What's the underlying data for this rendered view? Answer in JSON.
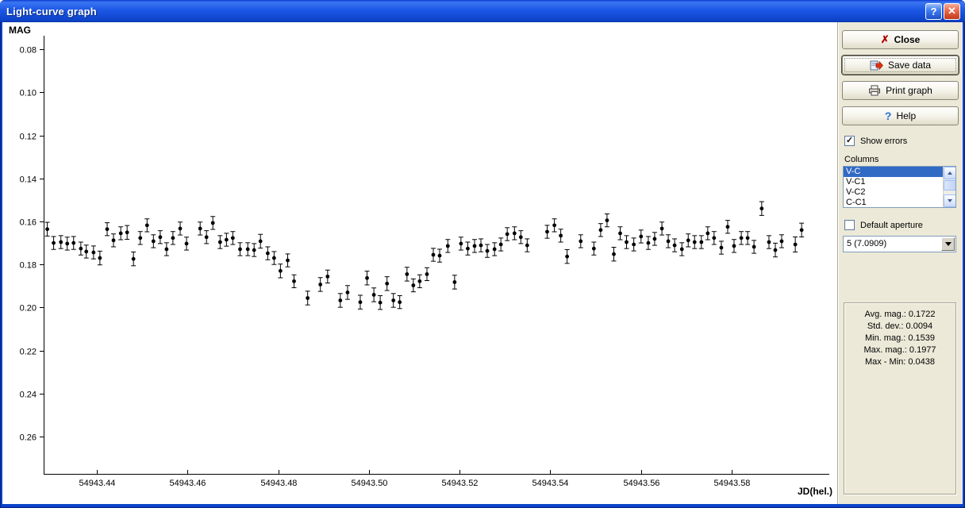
{
  "window": {
    "title": "Light-curve graph",
    "controls": {
      "help_glyph": "?",
      "close_glyph": "✕"
    }
  },
  "colors": {
    "titlebar_blue": "#1C57E6",
    "window_border_blue": "#0B43C9",
    "panel_bg": "#ECE9D8",
    "selection_blue": "#316AC5",
    "close_icon_red": "#B00000",
    "help_icon_blue": "#2A6FD6",
    "data_point_black": "#000000"
  },
  "chart_data": {
    "type": "scatter",
    "title": "",
    "xlabel": "JD(hel.)",
    "ylabel": "MAG",
    "legend": "none",
    "grid": false,
    "error_bars": true,
    "y_axis_note": "magnitude increases downward",
    "xlim": [
      54943.4283,
      54943.6015
    ],
    "ylim": [
      0.0737,
      0.2773
    ],
    "x_ticks": [
      54943.44,
      54943.46,
      54943.48,
      54943.5,
      54943.52,
      54943.54,
      54943.56,
      54943.58
    ],
    "x_tick_labels": [
      "54943.44",
      "54943.46",
      "54943.48",
      "54943.50",
      "54943.52",
      "54943.54",
      "54943.56",
      "54943.58"
    ],
    "y_ticks": [
      0.08,
      0.1,
      0.12,
      0.14,
      0.16,
      0.18,
      0.2,
      0.22,
      0.24,
      0.26
    ],
    "y_tick_labels": [
      "0.08",
      "0.10",
      "0.12",
      "0.14",
      "0.16",
      "0.18",
      "0.20",
      "0.22",
      "0.24",
      "0.26"
    ],
    "series_name": "V-C",
    "points": [
      [
        54943.4291,
        0.1636,
        0.0032
      ],
      [
        54943.4305,
        0.17,
        0.003
      ],
      [
        54943.4321,
        0.1696,
        0.003
      ],
      [
        54943.4335,
        0.1703,
        0.003
      ],
      [
        54943.4349,
        0.17,
        0.003
      ],
      [
        54943.4365,
        0.1726,
        0.003
      ],
      [
        54943.4377,
        0.174,
        0.003
      ],
      [
        54943.4393,
        0.1744,
        0.003
      ],
      [
        54943.4407,
        0.177,
        0.0032
      ],
      [
        54943.4423,
        0.1636,
        0.003
      ],
      [
        54943.4437,
        0.1688,
        0.003
      ],
      [
        54943.4453,
        0.1655,
        0.003
      ],
      [
        54943.4467,
        0.1651,
        0.0032
      ],
      [
        54943.4481,
        0.1774,
        0.0032
      ],
      [
        54943.4496,
        0.1677,
        0.003
      ],
      [
        54943.4511,
        0.1618,
        0.003
      ],
      [
        54943.4525,
        0.1692,
        0.003
      ],
      [
        54943.454,
        0.1673,
        0.003
      ],
      [
        54943.4554,
        0.1729,
        0.003
      ],
      [
        54943.4568,
        0.1677,
        0.003
      ],
      [
        54943.4584,
        0.1633,
        0.003
      ],
      [
        54943.4598,
        0.1703,
        0.003
      ],
      [
        54943.4628,
        0.1633,
        0.003
      ],
      [
        54943.4642,
        0.1673,
        0.003
      ],
      [
        54943.4656,
        0.1607,
        0.003
      ],
      [
        54943.4672,
        0.1696,
        0.003
      ],
      [
        54943.4686,
        0.1685,
        0.003
      ],
      [
        54943.47,
        0.1677,
        0.003
      ],
      [
        54943.4716,
        0.1729,
        0.003
      ],
      [
        54943.4733,
        0.1729,
        0.003
      ],
      [
        54943.4747,
        0.1733,
        0.003
      ],
      [
        54943.4761,
        0.1692,
        0.0032
      ],
      [
        54943.4777,
        0.1748,
        0.003
      ],
      [
        54943.4791,
        0.177,
        0.003
      ],
      [
        54943.4805,
        0.183,
        0.0032
      ],
      [
        54943.4821,
        0.1781,
        0.003
      ],
      [
        54943.4835,
        0.1878,
        0.003
      ],
      [
        54943.4865,
        0.1956,
        0.0032
      ],
      [
        54943.4893,
        0.1893,
        0.0032
      ],
      [
        54943.4909,
        0.1856,
        0.003
      ],
      [
        54943.4937,
        0.1967,
        0.0032
      ],
      [
        54943.4953,
        0.193,
        0.0032
      ],
      [
        54943.4981,
        0.1975,
        0.0032
      ],
      [
        54943.4996,
        0.1863,
        0.0032
      ],
      [
        54943.5011,
        0.1941,
        0.0032
      ],
      [
        54943.5025,
        0.1977,
        0.0032
      ],
      [
        54943.504,
        0.1889,
        0.0032
      ],
      [
        54943.5054,
        0.1967,
        0.0032
      ],
      [
        54943.5068,
        0.1975,
        0.003
      ],
      [
        54943.5084,
        0.1845,
        0.0032
      ],
      [
        54943.5098,
        0.1897,
        0.003
      ],
      [
        54943.5112,
        0.1878,
        0.003
      ],
      [
        54943.5128,
        0.1845,
        0.003
      ],
      [
        54943.5142,
        0.1755,
        0.003
      ],
      [
        54943.5156,
        0.1759,
        0.003
      ],
      [
        54943.5174,
        0.1714,
        0.003
      ],
      [
        54943.5189,
        0.1882,
        0.0032
      ],
      [
        54943.5203,
        0.1703,
        0.003
      ],
      [
        54943.5218,
        0.1726,
        0.003
      ],
      [
        54943.5233,
        0.1714,
        0.003
      ],
      [
        54943.5247,
        0.1711,
        0.003
      ],
      [
        54943.5261,
        0.1737,
        0.003
      ],
      [
        54943.5277,
        0.1729,
        0.003
      ],
      [
        54943.5291,
        0.1707,
        0.003
      ],
      [
        54943.5305,
        0.1659,
        0.003
      ],
      [
        54943.5321,
        0.1655,
        0.003
      ],
      [
        54943.5335,
        0.1673,
        0.003
      ],
      [
        54943.5349,
        0.1711,
        0.003
      ],
      [
        54943.5393,
        0.1648,
        0.003
      ],
      [
        54943.5409,
        0.1618,
        0.003
      ],
      [
        54943.5423,
        0.1666,
        0.003
      ],
      [
        54943.5437,
        0.1763,
        0.0032
      ],
      [
        54943.5467,
        0.1692,
        0.003
      ],
      [
        54943.5496,
        0.1726,
        0.003
      ],
      [
        54943.5511,
        0.164,
        0.003
      ],
      [
        54943.5525,
        0.1595,
        0.003
      ],
      [
        54943.554,
        0.1752,
        0.0032
      ],
      [
        54943.5554,
        0.1655,
        0.003
      ],
      [
        54943.5568,
        0.1696,
        0.003
      ],
      [
        54943.5584,
        0.1707,
        0.003
      ],
      [
        54943.56,
        0.167,
        0.003
      ],
      [
        54943.5616,
        0.17,
        0.003
      ],
      [
        54943.563,
        0.1681,
        0.003
      ],
      [
        54943.5646,
        0.1633,
        0.003
      ],
      [
        54943.566,
        0.1692,
        0.003
      ],
      [
        54943.5674,
        0.1711,
        0.003
      ],
      [
        54943.569,
        0.1729,
        0.003
      ],
      [
        54943.5704,
        0.1688,
        0.003
      ],
      [
        54943.5718,
        0.1696,
        0.003
      ],
      [
        54943.5733,
        0.1696,
        0.003
      ],
      [
        54943.5747,
        0.1655,
        0.003
      ],
      [
        54943.5761,
        0.1677,
        0.003
      ],
      [
        54943.5777,
        0.1722,
        0.003
      ],
      [
        54943.5791,
        0.1625,
        0.003
      ],
      [
        54943.5805,
        0.1714,
        0.003
      ],
      [
        54943.5821,
        0.1677,
        0.003
      ],
      [
        54943.5835,
        0.1677,
        0.003
      ],
      [
        54943.5849,
        0.1718,
        0.003
      ],
      [
        54943.5866,
        0.154,
        0.0032
      ],
      [
        54943.5882,
        0.1696,
        0.003
      ],
      [
        54943.5896,
        0.1733,
        0.0032
      ],
      [
        54943.591,
        0.1692,
        0.003
      ],
      [
        54943.594,
        0.1707,
        0.0035
      ],
      [
        54943.5954,
        0.164,
        0.0032
      ]
    ]
  },
  "sidebar": {
    "buttons": {
      "close": {
        "label": "Close",
        "icon": "red-x",
        "glyph": "✗"
      },
      "save": {
        "label": "Save data",
        "icon": "save-export"
      },
      "print": {
        "label": "Print graph",
        "icon": "printer"
      },
      "help": {
        "label": "Help",
        "icon": "question-mark",
        "glyph": "?"
      }
    },
    "show_errors": {
      "label": "Show errors",
      "checked": true,
      "check_glyph": "✓"
    },
    "columns": {
      "label": "Columns",
      "items": [
        "V-C",
        "V-C1",
        "V-C2",
        "C-C1"
      ],
      "selected": "V-C"
    },
    "default_aperture": {
      "label": "Default aperture",
      "checked": false
    },
    "aperture_select": {
      "value": "5 (7.0909)"
    },
    "stats": {
      "lines": [
        "Avg. mag.: 0.1722",
        "Std. dev.: 0.0094",
        "Min. mag.: 0.1539",
        "Max. mag.: 0.1977",
        "Max - Min: 0.0438"
      ]
    }
  }
}
